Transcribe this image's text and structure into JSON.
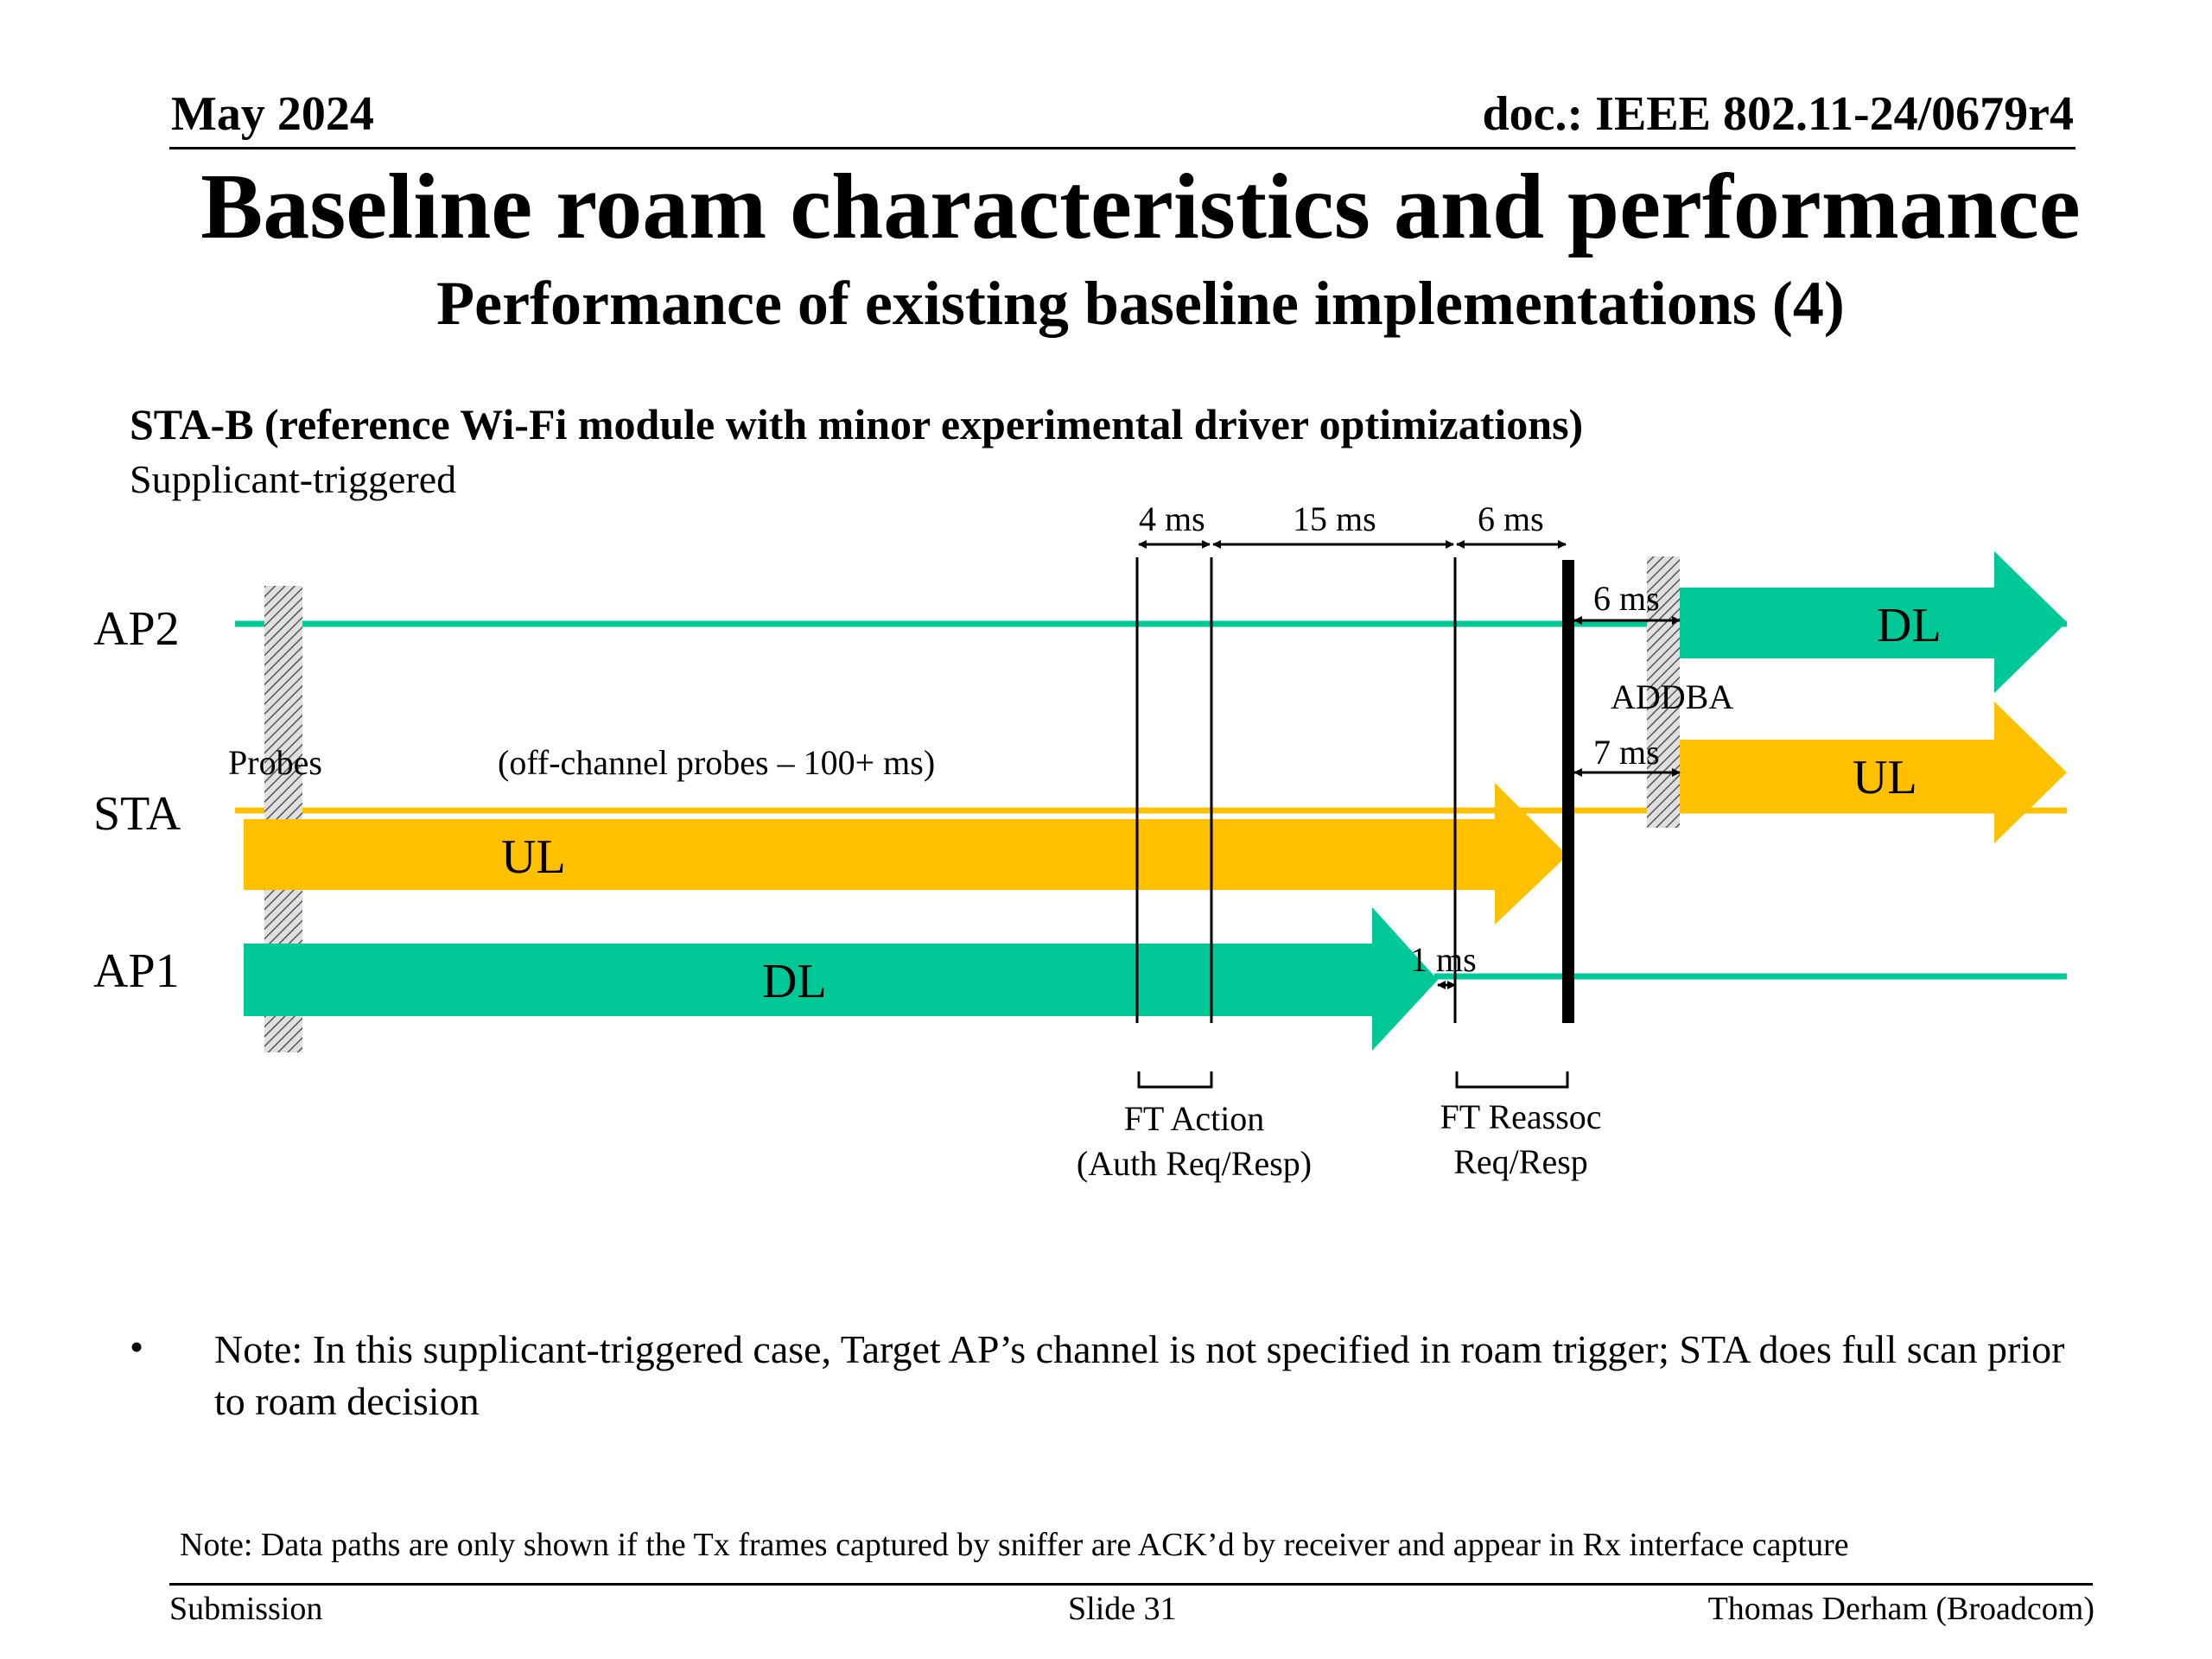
{
  "header": {
    "date": "May 2024",
    "doc": "doc.: IEEE 802.11-24/0679r4"
  },
  "title": "Baseline roam characteristics and performance",
  "subtitle": "Performance of existing baseline implementations (4)",
  "section": {
    "heading": "STA-B (reference Wi-Fi module with minor experimental driver optimizations)",
    "subheading": "Supplicant-triggered"
  },
  "diagram": {
    "rows": {
      "ap2": "AP2",
      "sta": "STA",
      "ap1": "AP1"
    },
    "labels": {
      "probes": "Probes",
      "offchannel": "(off-channel probes – 100+ ms)",
      "addba": "ADDBA",
      "ul_main": "UL",
      "dl_main": "DL",
      "dl_ap2": "DL",
      "ul_ap2": "UL"
    },
    "durations": {
      "t4": "4 ms",
      "t15": "15 ms",
      "t6top": "6 ms",
      "t6ap2": "6 ms",
      "t7": "7 ms",
      "t1": "1 ms"
    },
    "brackets": {
      "ft_action_1": "FT Action",
      "ft_action_2": "(Auth Req/Resp)",
      "ft_reassoc_1": "FT Reassoc",
      "ft_reassoc_2": "Req/Resp"
    },
    "colors": {
      "teal": "#00C896",
      "gold": "#FFC000"
    }
  },
  "bullet": "Note: In this supplicant-triggered case, Target AP’s channel is not specified in roam trigger; STA does full scan prior to roam decision",
  "note": "Note: Data paths are only shown if the Tx frames captured by sniffer are ACK’d by receiver and appear in Rx interface capture",
  "footer": {
    "left": "Submission",
    "center": "Slide 31",
    "right": "Thomas Derham (Broadcom)"
  }
}
